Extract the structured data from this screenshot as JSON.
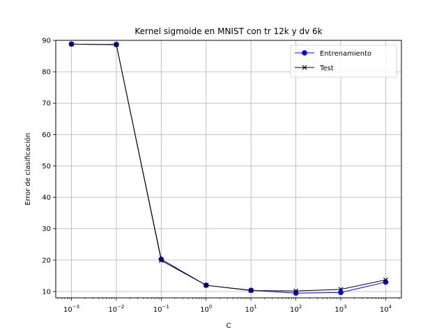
{
  "chart_data": {
    "type": "line",
    "title": "Kernel sigmoide en MNIST con tr 12k y dv 6k",
    "xlabel": "C",
    "ylabel": "Error de clasificación",
    "xscale": "log",
    "x": [
      0.001,
      0.01,
      0.1,
      1,
      10,
      100,
      1000,
      10000
    ],
    "x_tick_labels": [
      {
        "base": "10",
        "exp": "−3"
      },
      {
        "base": "10",
        "exp": "−2"
      },
      {
        "base": "10",
        "exp": "−1"
      },
      {
        "base": "10",
        "exp": "0"
      },
      {
        "base": "10",
        "exp": "1"
      },
      {
        "base": "10",
        "exp": "2"
      },
      {
        "base": "10",
        "exp": "3"
      },
      {
        "base": "10",
        "exp": "4"
      }
    ],
    "ylim": [
      8,
      90
    ],
    "y_ticks": [
      10,
      20,
      30,
      40,
      50,
      60,
      70,
      80,
      90
    ],
    "grid": true,
    "legend_position": "top-right",
    "series": [
      {
        "name": "Entrenamiento",
        "color": "#0000ff",
        "marker": "circle",
        "values": [
          88.8,
          88.7,
          20.3,
          12.0,
          10.4,
          9.5,
          9.7,
          13.0
        ]
      },
      {
        "name": "Test",
        "color": "#000000",
        "marker": "x",
        "values": [
          88.8,
          88.6,
          19.9,
          12.0,
          10.3,
          10.2,
          10.7,
          13.7
        ]
      }
    ]
  }
}
